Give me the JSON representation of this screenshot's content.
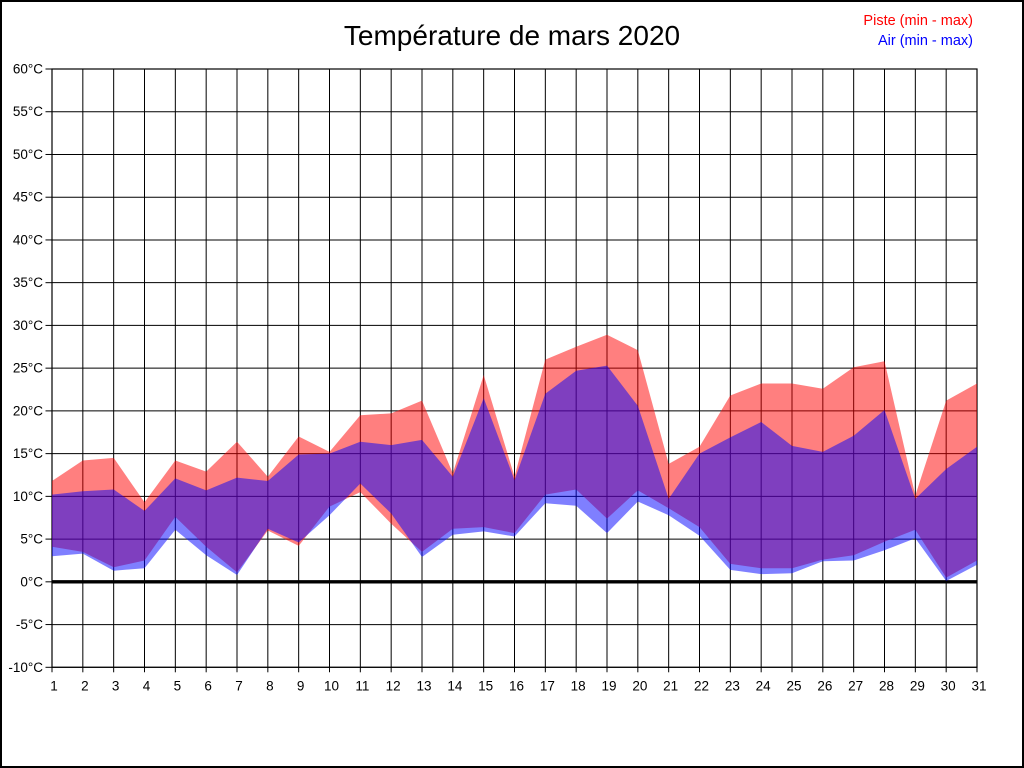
{
  "title": "Température de mars 2020",
  "legend": {
    "piste": {
      "label": "Piste (min - max)",
      "color": "#ff0000"
    },
    "air": {
      "label": "Air (min - max)",
      "color": "#0000ff"
    }
  },
  "colors": {
    "background": "#ffffff",
    "grid": "#000000",
    "frame": "#000000",
    "zero_line": "#000000",
    "piste_fill": "rgba(255,0,0,0.5)",
    "air_fill": "rgba(0,0,255,0.5)"
  },
  "chart_data": {
    "type": "area",
    "title": "Température de mars 2020",
    "xlabel": "",
    "ylabel": "",
    "grid": true,
    "zero_line_bold": true,
    "legend_position": "top-right",
    "ylim": [
      -10,
      60
    ],
    "ytick_step": 5,
    "ytick_labels_top_down": [
      "60°C",
      "55°C",
      "50°C",
      "45°C",
      "40°C",
      "35°C",
      "30°C",
      "25°C",
      "20°C",
      "15°C",
      "10°C",
      "5°C",
      "0°C",
      "-5°C",
      "-10°C"
    ],
    "x": [
      1,
      2,
      3,
      4,
      5,
      6,
      7,
      8,
      9,
      10,
      11,
      12,
      13,
      14,
      15,
      16,
      17,
      18,
      19,
      20,
      21,
      22,
      23,
      24,
      25,
      26,
      27,
      28,
      29,
      30,
      31
    ],
    "series": [
      {
        "name": "Piste (min - max)",
        "fill": "rgba(255,0,0,0.5)",
        "max": [
          11.8,
          14.2,
          14.5,
          9.3,
          14.2,
          12.9,
          16.4,
          12.3,
          17.0,
          15.2,
          19.5,
          19.7,
          21.2,
          12.7,
          24.2,
          12.3,
          26.0,
          27.5,
          28.9,
          27.1,
          13.8,
          15.8,
          21.8,
          23.2,
          23.2,
          22.6,
          25.1,
          25.8,
          10.1,
          21.2,
          23.2
        ],
        "min": [
          4.1,
          3.5,
          1.7,
          2.5,
          7.6,
          4.1,
          1.1,
          6.0,
          4.2,
          8.8,
          10.5,
          6.8,
          3.5,
          6.2,
          6.4,
          5.7,
          10.2,
          10.8,
          7.4,
          10.7,
          8.6,
          6.4,
          2.1,
          1.6,
          1.6,
          2.6,
          3.1,
          4.7,
          6.1,
          0.5,
          2.5
        ]
      },
      {
        "name": "Air (min - max)",
        "fill": "rgba(0,0,255,0.5)",
        "max": [
          10.2,
          10.6,
          10.8,
          8.3,
          12.1,
          10.7,
          12.2,
          11.8,
          14.9,
          15.0,
          16.4,
          16.0,
          16.6,
          12.3,
          21.5,
          11.9,
          22.0,
          24.7,
          25.3,
          20.6,
          9.7,
          15.0,
          16.9,
          18.7,
          15.9,
          15.2,
          17.1,
          20.1,
          9.7,
          13.2,
          15.8
        ],
        "min": [
          3.0,
          3.3,
          1.3,
          1.6,
          6.1,
          3.1,
          0.8,
          6.2,
          4.6,
          7.8,
          11.5,
          8.0,
          2.9,
          5.5,
          5.9,
          5.3,
          9.2,
          8.9,
          5.7,
          9.4,
          7.8,
          5.4,
          1.4,
          0.9,
          1.0,
          2.4,
          2.5,
          3.7,
          5.1,
          0.1,
          2.0
        ]
      }
    ]
  }
}
